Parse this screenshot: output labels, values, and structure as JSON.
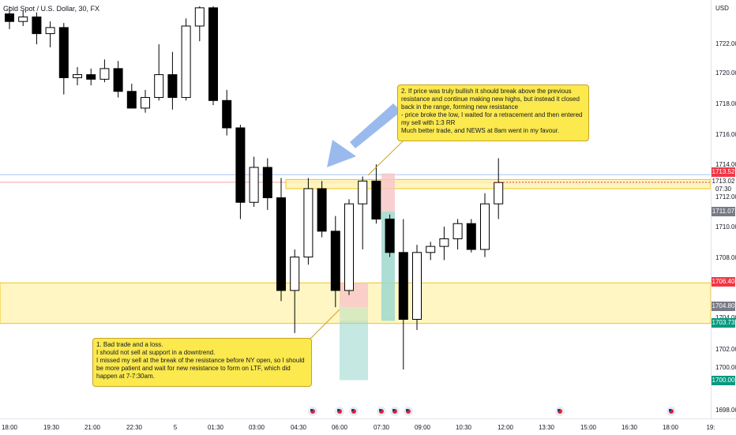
{
  "header": {
    "symbol_title": "Gold Spot / U.S. Dollar, 30, FX",
    "currency": "USD"
  },
  "price_axis": {
    "ticks": [
      "1722.00",
      "1720.00",
      "1718.00",
      "1716.00",
      "1714.00",
      "1712.00",
      "1710.00",
      "1708.00",
      "1704.00",
      "1702.00",
      "1700.00",
      "1698.00"
    ],
    "tags": {
      "upper": "1713.52",
      "current": "1713.02",
      "countdown": "07:30",
      "grey": "1711.07",
      "red": "1706.40",
      "dark": "1704.80",
      "teal_upper": "1703.73",
      "teal_lower": "1700.00"
    }
  },
  "time_axis": {
    "labels": [
      "18:00",
      "19:30",
      "21:00",
      "22:30",
      "5",
      "01:30",
      "03:00",
      "04:30",
      "06:00",
      "07:30",
      "09:00",
      "10:30",
      "12:00",
      "13:30",
      "15:00",
      "16:30",
      "18:00",
      "19:"
    ]
  },
  "annotations": {
    "note_1": "1. Bad trade and a loss.\nI should not sell at support in a downtrend.\nI missed my sell at the break of the resistance before NY open, so I should be more patient and wait for new resistance to form on LTF, which did happen at 7-7:30am.",
    "note_2": "2. If price was truly bullish it should break above the previous resistance and continue making new highs, but instead it closed back in the range, forming new resistance\n- price broke the low, I waited for a retracement and then entered my sell with 1:3 RR\nMuch better trade, and NEWS at 8am went in my favour."
  },
  "colors": {
    "bull_body": "#ffffff",
    "bear_body": "#000000",
    "zone_fill": "#fff3b0",
    "zone_border": "#f0c419",
    "stop_fill": "#f8c8c8",
    "target_fill": "#9fd8cf",
    "arrow": "#8fb3ec",
    "tag_red": "#f23645",
    "tag_grey": "#787b86",
    "tag_teal": "#089981",
    "tag_blue": "#2962ff"
  },
  "chart_data": {
    "type": "candlestick",
    "title": "Gold Spot / U.S. Dollar, 30, FX",
    "timeframe": "30",
    "ylim": [
      1697.5,
      1724.5
    ],
    "candles": [
      {
        "o": 1724.1,
        "h": 1724.6,
        "l": 1723.1,
        "c": 1723.6
      },
      {
        "o": 1723.6,
        "h": 1724.3,
        "l": 1723.3,
        "c": 1723.9
      },
      {
        "o": 1723.9,
        "h": 1724.2,
        "l": 1722.1,
        "c": 1722.8
      },
      {
        "o": 1722.8,
        "h": 1723.6,
        "l": 1721.9,
        "c": 1723.2
      },
      {
        "o": 1723.2,
        "h": 1723.5,
        "l": 1718.8,
        "c": 1719.9
      },
      {
        "o": 1719.9,
        "h": 1720.6,
        "l": 1719.4,
        "c": 1720.1
      },
      {
        "o": 1720.1,
        "h": 1720.5,
        "l": 1719.4,
        "c": 1719.8
      },
      {
        "o": 1719.8,
        "h": 1721.1,
        "l": 1719.6,
        "c": 1720.5
      },
      {
        "o": 1720.5,
        "h": 1721.0,
        "l": 1718.6,
        "c": 1719.0
      },
      {
        "o": 1719.0,
        "h": 1719.5,
        "l": 1718.1,
        "c": 1717.9
      },
      {
        "o": 1717.9,
        "h": 1719.1,
        "l": 1717.6,
        "c": 1718.6
      },
      {
        "o": 1718.6,
        "h": 1722.1,
        "l": 1718.4,
        "c": 1720.1
      },
      {
        "o": 1720.1,
        "h": 1721.6,
        "l": 1717.8,
        "c": 1718.6
      },
      {
        "o": 1718.6,
        "h": 1723.8,
        "l": 1718.4,
        "c": 1723.3
      },
      {
        "o": 1723.3,
        "h": 1724.6,
        "l": 1722.3,
        "c": 1724.5
      },
      {
        "o": 1724.5,
        "h": 1724.6,
        "l": 1718.1,
        "c": 1718.4
      },
      {
        "o": 1718.4,
        "h": 1719.1,
        "l": 1716.1,
        "c": 1716.6
      },
      {
        "o": 1716.6,
        "h": 1716.8,
        "l": 1710.6,
        "c": 1711.7
      },
      {
        "o": 1711.7,
        "h": 1714.7,
        "l": 1711.4,
        "c": 1714.0
      },
      {
        "o": 1714.0,
        "h": 1714.6,
        "l": 1711.2,
        "c": 1712.0
      },
      {
        "o": 1712.0,
        "h": 1713.3,
        "l": 1705.2,
        "c": 1705.9
      },
      {
        "o": 1705.9,
        "h": 1708.6,
        "l": 1703.1,
        "c": 1708.1
      },
      {
        "o": 1708.1,
        "h": 1713.3,
        "l": 1707.6,
        "c": 1712.6
      },
      {
        "o": 1712.6,
        "h": 1713.1,
        "l": 1709.4,
        "c": 1709.8
      },
      {
        "o": 1709.8,
        "h": 1710.8,
        "l": 1704.8,
        "c": 1705.9
      },
      {
        "o": 1705.9,
        "h": 1711.9,
        "l": 1705.6,
        "c": 1711.6
      },
      {
        "o": 1711.6,
        "h": 1713.4,
        "l": 1708.6,
        "c": 1713.1
      },
      {
        "o": 1713.1,
        "h": 1714.2,
        "l": 1710.3,
        "c": 1710.6
      },
      {
        "o": 1710.6,
        "h": 1710.9,
        "l": 1708.1,
        "c": 1708.4
      },
      {
        "o": 1708.4,
        "h": 1710.6,
        "l": 1700.7,
        "c": 1704.0
      },
      {
        "o": 1704.0,
        "h": 1708.9,
        "l": 1703.3,
        "c": 1708.4
      },
      {
        "o": 1708.4,
        "h": 1709.1,
        "l": 1707.9,
        "c": 1708.8
      },
      {
        "o": 1708.8,
        "h": 1710.1,
        "l": 1707.9,
        "c": 1709.3
      },
      {
        "o": 1709.3,
        "h": 1710.6,
        "l": 1708.6,
        "c": 1710.3
      },
      {
        "o": 1710.3,
        "h": 1710.6,
        "l": 1708.4,
        "c": 1708.6
      },
      {
        "o": 1708.6,
        "h": 1712.3,
        "l": 1708.1,
        "c": 1711.6
      },
      {
        "o": 1711.6,
        "h": 1714.6,
        "l": 1710.6,
        "c": 1713.0
      }
    ]
  }
}
